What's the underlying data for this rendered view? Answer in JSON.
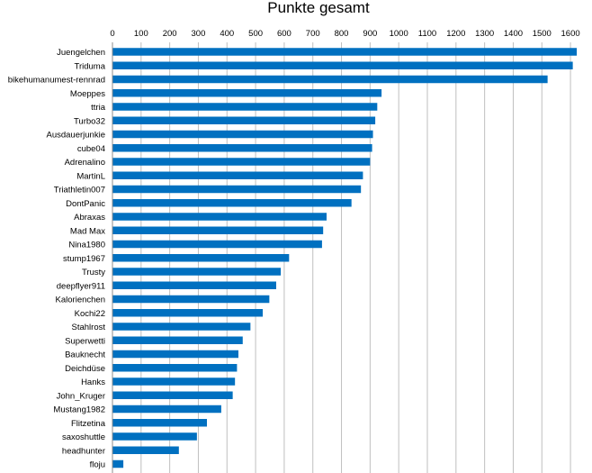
{
  "chart_data": {
    "type": "bar",
    "orientation": "horizontal",
    "title": "Punkte gesamt",
    "xlabel": "",
    "ylabel": "",
    "xlim": [
      0,
      1650
    ],
    "x_ticks": [
      0,
      100,
      200,
      300,
      400,
      500,
      600,
      700,
      800,
      900,
      1000,
      1100,
      1200,
      1300,
      1400,
      1500,
      1600
    ],
    "x_axis_position": "top",
    "grid": true,
    "legend": "none",
    "bar_color": "#0070c0",
    "categories": [
      "Juengelchen",
      "Triduma",
      "bikehumanumest-rennrad",
      "Moeppes",
      "ttria",
      "Turbo32",
      "Ausdauerjunkie",
      "cube04",
      "Adrenalino",
      "MartinL",
      "Triathletin007",
      "DontPanic",
      "Abraxas",
      "Mad Max",
      "Nina1980",
      "stump1967",
      "Trusty",
      "deepflyer911",
      "Kalorienchen",
      "Kochi22",
      "Stahlrost",
      "Superwetti",
      "Bauknecht",
      "Deichdüse",
      "Hanks",
      "John_Kruger",
      "Mustang1982",
      "Flitzetina",
      "saxoshuttle",
      "headhunter",
      "floju"
    ],
    "values": [
      1622,
      1608,
      1520,
      940,
      925,
      918,
      910,
      907,
      900,
      875,
      868,
      835,
      748,
      736,
      732,
      617,
      588,
      572,
      548,
      525,
      482,
      455,
      440,
      435,
      428,
      420,
      380,
      330,
      295,
      232,
      38
    ]
  }
}
